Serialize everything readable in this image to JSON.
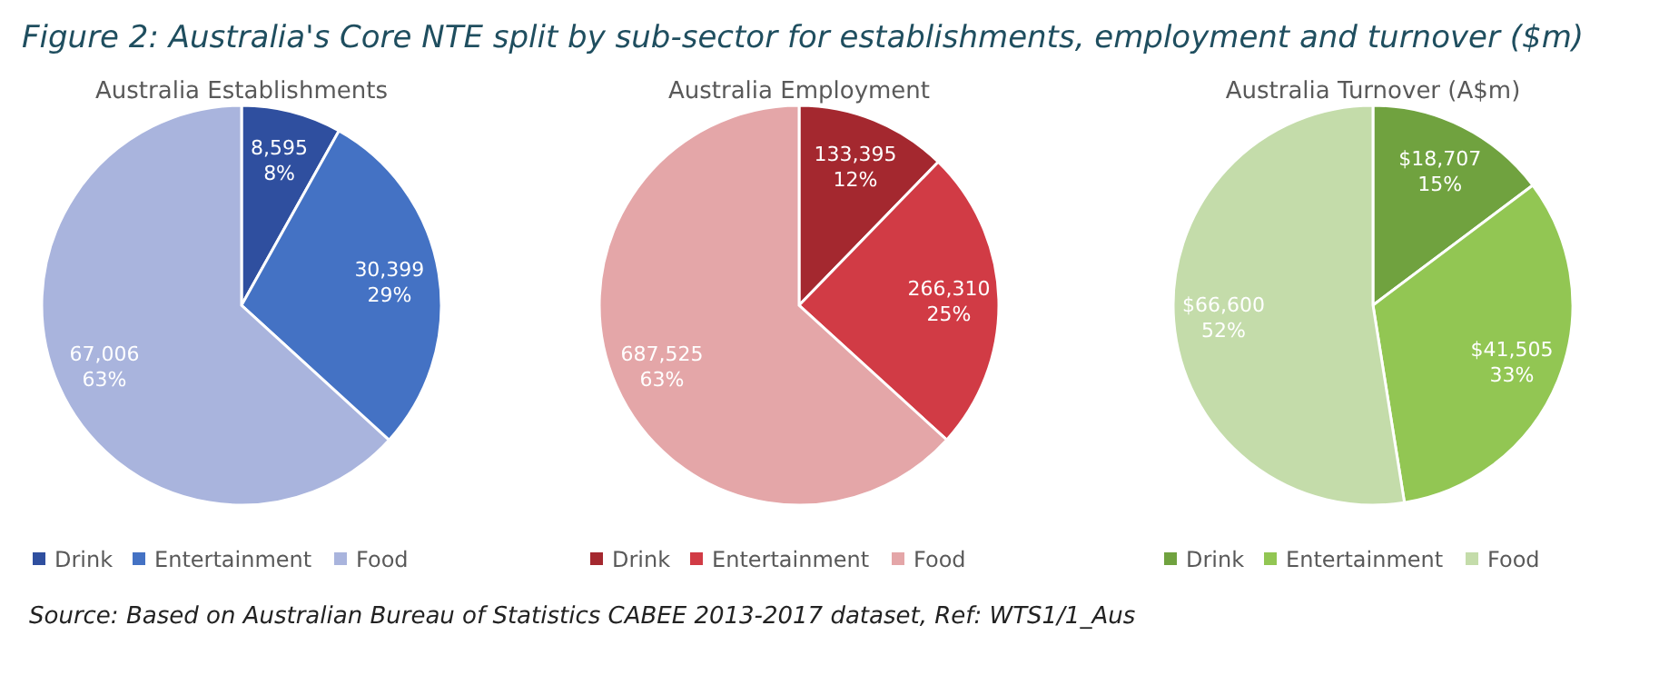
{
  "chart_data": [
    {
      "type": "other",
      "title": "Figure 2: Australia's Core NTE split by sub-sector for establishments, employment and turnover ($m)",
      "annotations": [
        "Source:  Based on Australian Bureau of Statistics CABEE 2013-2017 dataset, Ref: WTS1/1_Aus"
      ]
    },
    {
      "type": "pie",
      "title": "Australia Establishments",
      "categories": [
        "Drink",
        "Entertainment",
        "Food"
      ],
      "values": [
        8595,
        30399,
        67006
      ],
      "colors": [
        "#2f4f9f",
        "#4472c4",
        "#a9b4dd"
      ],
      "value_labels": [
        "8,595\n8%",
        "30,399\n29%",
        "67,006\n63%"
      ],
      "legend": "bottom"
    },
    {
      "type": "pie",
      "title": "Australia Employment",
      "categories": [
        "Drink",
        "Entertainment",
        "Food"
      ],
      "values": [
        133395,
        266310,
        687525
      ],
      "colors": [
        "#a4282f",
        "#d13b45",
        "#e4a6a8"
      ],
      "value_labels": [
        "133,395\n12%",
        "266,310\n25%",
        "687,525\n63%"
      ],
      "legend": "bottom"
    },
    {
      "type": "pie",
      "title": "Australia Turnover (A$m)",
      "categories": [
        "Drink",
        "Entertainment",
        "Food"
      ],
      "values": [
        18707,
        41505,
        66600
      ],
      "colors": [
        "#70a23f",
        "#92c653",
        "#c4dcaa"
      ],
      "value_labels": [
        "$18,707\n15%",
        "$41,505\n33%",
        "$66,600\n52%"
      ],
      "legend": "bottom"
    }
  ]
}
